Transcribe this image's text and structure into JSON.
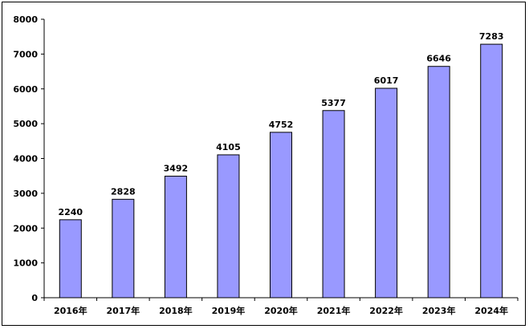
{
  "chart_data": {
    "type": "bar",
    "title": "",
    "xlabel": "",
    "ylabel": "",
    "categories": [
      "2016年",
      "2017年",
      "2018年",
      "2019年",
      "2020年",
      "2021年",
      "2022年",
      "2023年",
      "2024年"
    ],
    "values": [
      2240,
      2828,
      3492,
      4105,
      4752,
      5377,
      6017,
      6646,
      7283
    ],
    "ylim": [
      0,
      8000
    ],
    "yticks": [
      0,
      1000,
      2000,
      3000,
      4000,
      5000,
      6000,
      7000,
      8000
    ],
    "grid": false,
    "legend": "none",
    "colors": {
      "bar_fill": "#9999ff",
      "bar_stroke": "#000000",
      "axis": "#000000"
    }
  }
}
